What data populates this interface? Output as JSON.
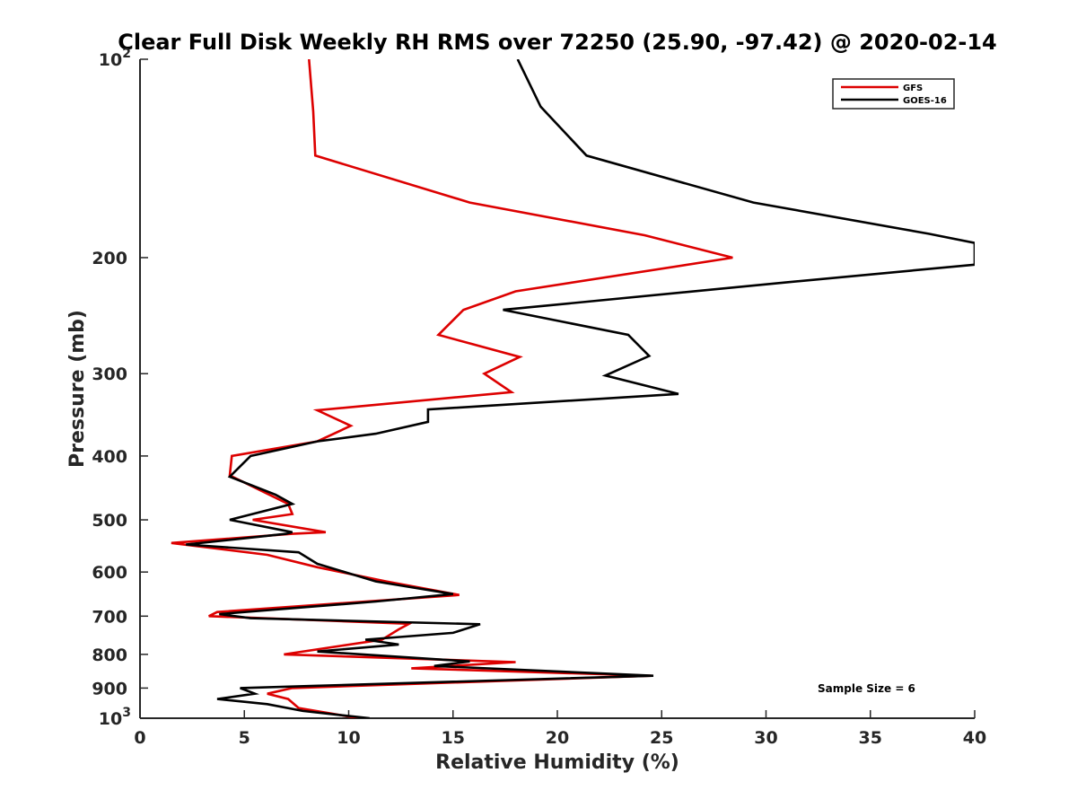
{
  "chart_data": {
    "type": "line",
    "title": "Clear Full Disk Weekly RH RMS over 72250 (25.90, -97.42) @ 2020-02-14",
    "xlabel": "Relative Humidity (%)",
    "ylabel": "Pressure (mb)",
    "xlim": [
      0,
      40
    ],
    "ylim": [
      100,
      1000
    ],
    "y_scale": "log",
    "y_reversed": true,
    "grid": false,
    "legend_position": "top-right",
    "x_ticks": [
      "0",
      "5",
      "10",
      "15",
      "20",
      "25",
      "30",
      "35",
      "40"
    ],
    "y_ticks": [
      {
        "value": 100,
        "base": "10",
        "exp": "2"
      },
      {
        "value": 200,
        "label": "200"
      },
      {
        "value": 300,
        "label": "300"
      },
      {
        "value": 400,
        "label": "400"
      },
      {
        "value": 500,
        "label": "500"
      },
      {
        "value": 600,
        "label": "600"
      },
      {
        "value": 700,
        "label": "700"
      },
      {
        "value": 800,
        "label": "800"
      },
      {
        "value": 900,
        "label": "900"
      },
      {
        "value": 1000,
        "base": "10",
        "exp": "3"
      }
    ],
    "annotation": "Sample Size = 6",
    "series": [
      {
        "name": "GFS",
        "color": "#dd0000",
        "x": [
          8.1,
          8.3,
          8.4,
          15.8,
          24.2,
          28.4,
          18.0,
          15.5,
          14.3,
          18.2,
          16.5,
          17.8,
          8.5,
          10.1,
          8.5,
          4.4,
          4.3,
          7.1,
          7.3,
          5.4,
          8.9,
          7.3,
          1.5,
          6.1,
          8.5,
          11.8,
          15.3,
          3.7,
          3.3,
          12.9,
          12.4,
          11.6,
          6.9,
          18.0,
          13.0,
          24.5,
          7.3,
          6.1,
          7.1,
          7.6,
          10.5
        ],
        "y": [
          100,
          120,
          140,
          165,
          185,
          200,
          225,
          240,
          262,
          283,
          300,
          320,
          341,
          360,
          380,
          400,
          428,
          473,
          490,
          500,
          522,
          525,
          542,
          565,
          590,
          620,
          650,
          690,
          700,
          719,
          733,
          760,
          800,
          822,
          840,
          862,
          900,
          918,
          935,
          965,
          1000
        ]
      },
      {
        "name": "GOES-16",
        "color": "#000000",
        "x": [
          18.1,
          19.2,
          21.4,
          29.4,
          37.8,
          40.0,
          40.0,
          31.0,
          17.4,
          23.4,
          24.4,
          22.3,
          25.8,
          13.8,
          13.8,
          11.3,
          8.5,
          5.3,
          4.3,
          6.5,
          7.3,
          4.3,
          7.3,
          7.0,
          2.2,
          7.6,
          8.5,
          11.3,
          15.0,
          11.3,
          3.8,
          5.3,
          16.3,
          15.0,
          10.8,
          12.4,
          8.5,
          15.8,
          14.1,
          24.6,
          4.8,
          5.5,
          3.7,
          6.1,
          7.8,
          11.0
        ],
        "y": [
          100,
          118,
          140,
          165,
          184,
          190,
          205,
          218,
          240,
          262,
          282,
          302,
          322,
          340,
          355,
          370,
          380,
          400,
          430,
          458,
          473,
          500,
          522,
          525,
          545,
          560,
          583,
          620,
          648,
          665,
          695,
          705,
          720,
          742,
          760,
          773,
          792,
          820,
          833,
          862,
          900,
          918,
          935,
          952,
          975,
          1000
        ]
      }
    ]
  }
}
